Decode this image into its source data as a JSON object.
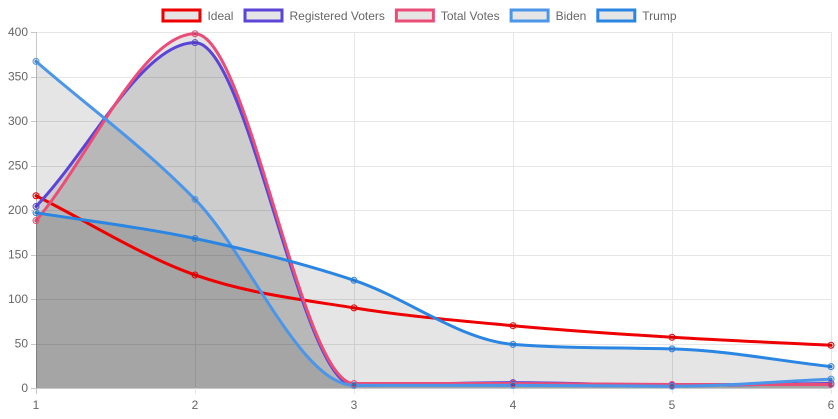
{
  "chart_data": {
    "type": "line",
    "x": [
      1,
      2,
      3,
      4,
      5,
      6
    ],
    "ylim": [
      0,
      400
    ],
    "yticks": [
      0,
      50,
      100,
      150,
      200,
      250,
      300,
      350,
      400
    ],
    "grid": true,
    "legend_position": "top-center",
    "series": [
      {
        "name": "Ideal",
        "values": [
          216,
          127,
          90,
          70,
          57,
          48
        ],
        "color": "#ee0000",
        "fill": false
      },
      {
        "name": "Registered Voters",
        "values": [
          204,
          388,
          3,
          6,
          3,
          5
        ],
        "color": "#5b45d6",
        "fill": true
      },
      {
        "name": "Total Votes",
        "values": [
          188,
          398,
          5,
          5,
          4,
          4
        ],
        "color": "#ea4d78",
        "fill": true
      },
      {
        "name": "Biden",
        "values": [
          367,
          212,
          3,
          3,
          2,
          10
        ],
        "color": "#4b96e8",
        "fill": true
      },
      {
        "name": "Trump",
        "values": [
          197,
          168,
          121,
          49,
          44,
          24
        ],
        "color": "#2a86e2",
        "fill": true
      }
    ]
  }
}
